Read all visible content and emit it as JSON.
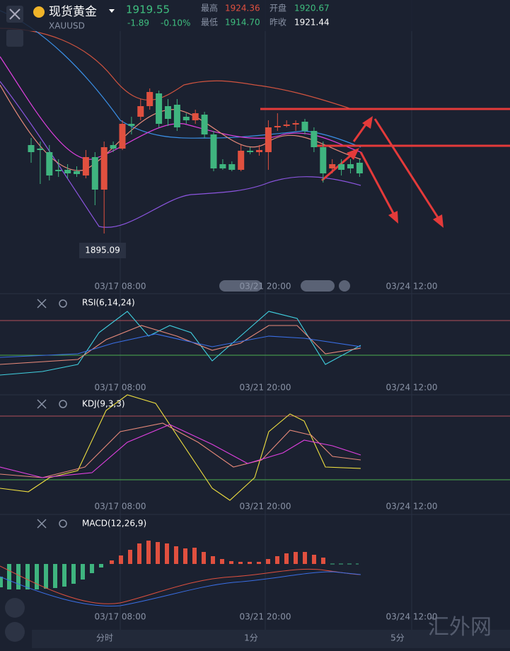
{
  "header": {
    "name": "现货黄金",
    "symbol": "XAUUSD",
    "price": "1919.55",
    "change": "-1.89",
    "change_pct": "-0.10%",
    "stats": [
      {
        "label": "最高",
        "value": "1924.36"
      },
      {
        "label": "开盘",
        "value": "1920.67"
      },
      {
        "label": "最低",
        "value": "1914.70"
      },
      {
        "label": "昨收",
        "value": "1921.44"
      }
    ]
  },
  "chart_data": {
    "type": "candlestick",
    "ylim": [
      1878.75,
      1977.5
    ],
    "low_label": "1895.09",
    "x_labels": [
      "03/17 08:00",
      "03/21 20:00",
      "03/24 12:00"
    ],
    "open": [
      1926.25,
      1925,
      1923.75,
      1917.5,
      1917.5,
      1917,
      1915.5,
      1922,
      1910.5,
      1926.25,
      1925,
      1933.75,
      1936.25,
      1940,
      1944.5,
      1940,
      1940.5,
      1936.25,
      1935,
      1937,
      1930,
      1919.5,
      1919.5,
      1917.5,
      1924.25,
      1923.75,
      1923.75,
      1932.5,
      1933,
      1933.5,
      1934.5,
      1931.25,
      1925.5,
      1918,
      1919.5,
      1919.5,
      1920
    ],
    "close": [
      1923.75,
      1924.5,
      1915.5,
      1917,
      1916.25,
      1916,
      1922,
      1910.5,
      1925.5,
      1925,
      1933.75,
      1933,
      1940,
      1945,
      1933.75,
      1935.5,
      1932.5,
      1935,
      1937.5,
      1930,
      1918,
      1918,
      1917.5,
      1924.25,
      1923.75,
      1924.5,
      1932.5,
      1933,
      1933.5,
      1934,
      1931.25,
      1925.5,
      1916.25,
      1919.5,
      1917.5,
      1918,
      1916.25
    ],
    "high": [
      1928.75,
      1927.5,
      1926.25,
      1921.25,
      1919.5,
      1918.75,
      1924.5,
      1923.75,
      1927.5,
      1927.5,
      1935,
      1936.25,
      1942.5,
      1946.25,
      1945.5,
      1942.5,
      1942.5,
      1937.5,
      1938.75,
      1938,
      1931.25,
      1921.25,
      1920.5,
      1926.25,
      1925.5,
      1926.25,
      1935,
      1937.5,
      1935,
      1935,
      1935.5,
      1932.5,
      1927.5,
      1921.25,
      1921.25,
      1921.25,
      1921.25
    ],
    "low": [
      1920,
      1912.5,
      1913.75,
      1915,
      1914.5,
      1915,
      1914.5,
      1905,
      1895,
      1923.75,
      1924.5,
      1930,
      1935,
      1938.75,
      1932.5,
      1933,
      1931.25,
      1933.75,
      1933.75,
      1928.75,
      1917,
      1917.5,
      1917,
      1917,
      1923,
      1922.5,
      1917.5,
      1931.25,
      1932.5,
      1931.25,
      1930,
      1923.75,
      1913,
      1916.25,
      1915.5,
      1916.25,
      1915
    ]
  },
  "indicators": [
    "RSI(6,14,24)",
    "KDJ(9,3,3)",
    "MACD(12,26,9)"
  ],
  "tabs": [
    "分时",
    "1分",
    "5分"
  ],
  "watermark": "汇外网"
}
